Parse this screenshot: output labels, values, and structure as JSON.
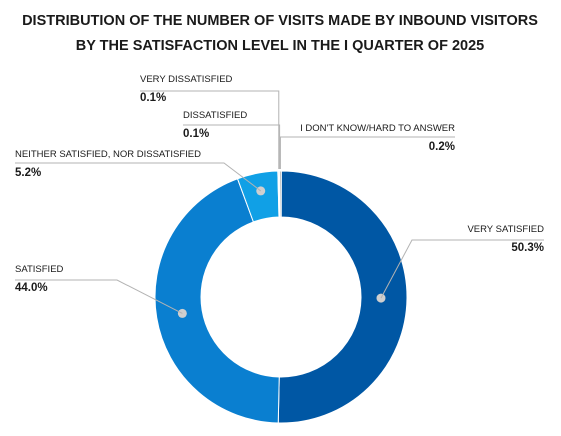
{
  "chart_data": {
    "type": "pie",
    "donut": true,
    "title": [
      "DISTRIBUTION OF THE NUMBER OF VISITS MADE BY INBOUND VISITORS",
      "BY THE SATISFACTION LEVEL IN THE I QUARTER OF 2025"
    ],
    "slices": [
      {
        "label": "VERY SATISFIED",
        "value": 50.3,
        "value_label": "50.3%",
        "color": "#0057a4"
      },
      {
        "label": "SATISFIED",
        "value": 44.0,
        "value_label": "44.0%",
        "color": "#0a7fd0"
      },
      {
        "label": "NEITHER SATISFIED, NOR DISSATISFIED",
        "value": 5.2,
        "value_label": "5.2%",
        "color": "#10a0e6"
      },
      {
        "label": "VERY DISSATISFIED",
        "value": 0.1,
        "value_label": "0.1%",
        "color": "#7a7a7a"
      },
      {
        "label": "DISSATISFIED",
        "value": 0.1,
        "value_label": "0.1%",
        "color": "#9a9a9a"
      },
      {
        "label": "I DON'T KNOW/HARD TO ANSWER",
        "value": 0.2,
        "value_label": "0.2%",
        "color": "#bdbdbd"
      }
    ],
    "legend": "none"
  }
}
